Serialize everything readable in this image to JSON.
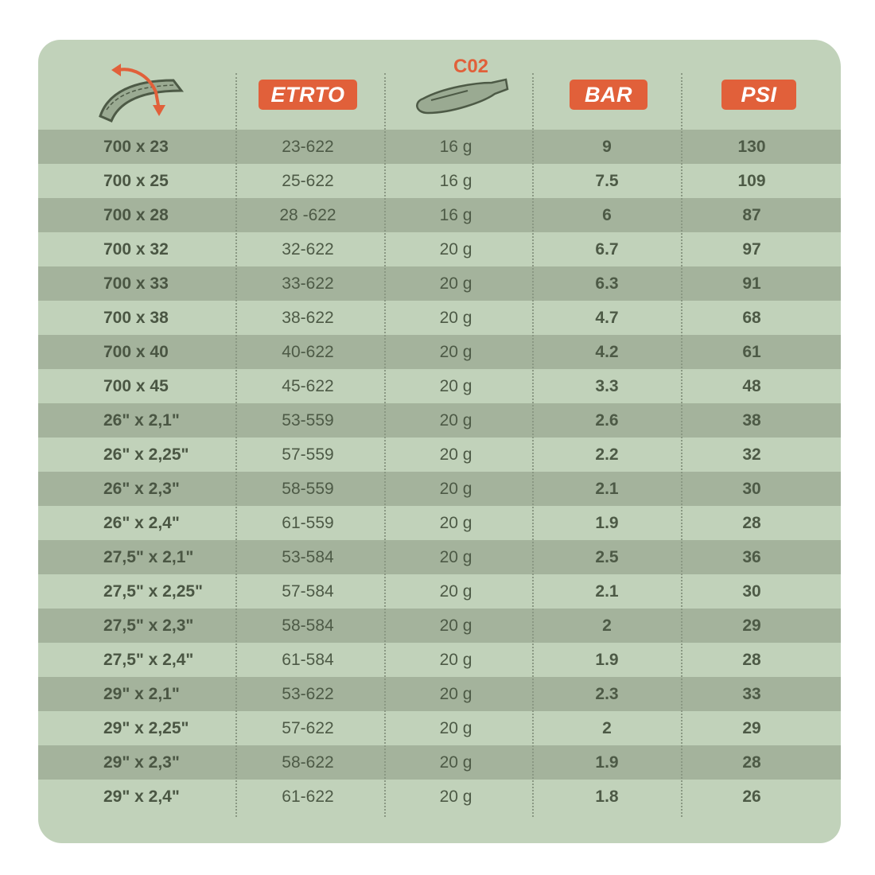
{
  "colors": {
    "background": "#c1d2ba",
    "stripe": "#a4b39c",
    "accent": "#e1603a",
    "text": "#4d5a46"
  },
  "header": {
    "tire_icon": "tire-size-icon",
    "etrto": "ETRTO",
    "co2_label": "C02",
    "co2_icon": "co2-cartridge-icon",
    "bar": "BAR",
    "psi": "PSI"
  },
  "rows": [
    [
      "700 x 23",
      "23-622",
      "16 g",
      "9",
      "130"
    ],
    [
      "700 x 25",
      "25-622",
      "16 g",
      "7.5",
      "109"
    ],
    [
      "700 x 28",
      "28 -622",
      "16 g",
      "6",
      "87"
    ],
    [
      "700 x 32",
      "32-622",
      "20 g",
      "6.7",
      "97"
    ],
    [
      "700 x 33",
      "33-622",
      "20 g",
      "6.3",
      "91"
    ],
    [
      "700 x 38",
      "38-622",
      "20 g",
      "4.7",
      "68"
    ],
    [
      "700 x 40",
      "40-622",
      "20 g",
      "4.2",
      "61"
    ],
    [
      "700 x 45",
      "45-622",
      "20 g",
      "3.3",
      "48"
    ],
    [
      "26\" x 2,1\"",
      "53-559",
      "20 g",
      "2.6",
      "38"
    ],
    [
      "26\" x 2,25\"",
      "57-559",
      "20 g",
      "2.2",
      "32"
    ],
    [
      "26\" x 2,3\"",
      "58-559",
      "20 g",
      "2.1",
      "30"
    ],
    [
      "26\" x 2,4\"",
      "61-559",
      "20 g",
      "1.9",
      "28"
    ],
    [
      "27,5\" x 2,1\"",
      "53-584",
      "20 g",
      "2.5",
      "36"
    ],
    [
      "27,5\" x 2,25\"",
      "57-584",
      "20 g",
      "2.1",
      "30"
    ],
    [
      "27,5\" x 2,3\"",
      "58-584",
      "20 g",
      "2",
      "29"
    ],
    [
      "27,5\" x 2,4\"",
      "61-584",
      "20 g",
      "1.9",
      "28"
    ],
    [
      "29\" x 2,1\"",
      "53-622",
      "20 g",
      "2.3",
      "33"
    ],
    [
      "29\" x 2,25\"",
      "57-622",
      "20 g",
      "2",
      "29"
    ],
    [
      "29\" x 2,3\"",
      "58-622",
      "20 g",
      "1.9",
      "28"
    ],
    [
      "29\" x 2,4\"",
      "61-622",
      "20 g",
      "1.8",
      "26"
    ]
  ]
}
